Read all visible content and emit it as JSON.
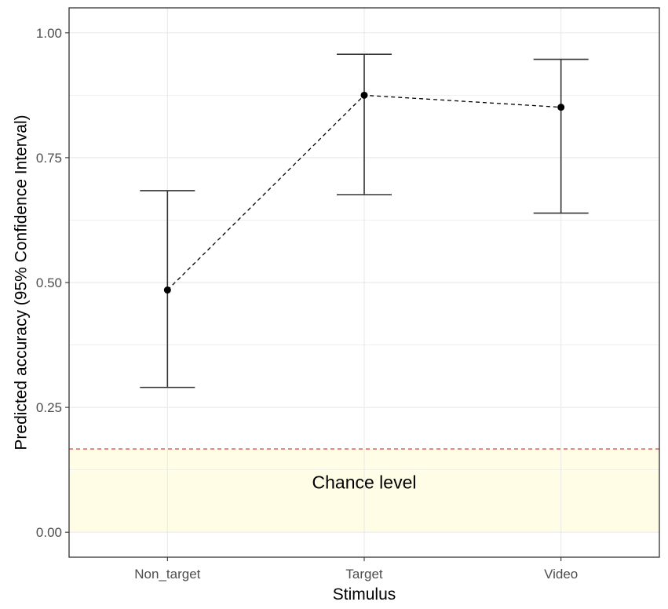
{
  "chart_data": {
    "type": "scatter",
    "title": "",
    "xlabel": "Stimulus",
    "ylabel": "Predicted accuracy (95% Confidence Interval)",
    "categories": [
      "Non_target",
      "Target",
      "Video"
    ],
    "series": [
      {
        "values": [
          0.485,
          0.875,
          0.851
        ],
        "ci_lower": [
          0.29,
          0.676,
          0.639
        ],
        "ci_upper": [
          0.684,
          0.957,
          0.947
        ],
        "connector": "dashed"
      }
    ],
    "ylim": [
      -0.05,
      1.05
    ],
    "yticks": [
      0.0,
      0.25,
      0.5,
      0.75,
      1.0
    ],
    "ytick_labels": [
      "0.00",
      "0.25",
      "0.50",
      "0.75",
      "1.00"
    ],
    "reference_line": {
      "y": 0.1667,
      "style": "dashed",
      "color": "#d9534f"
    },
    "shaded_band": {
      "ymin": 0.0,
      "ymax": 0.1667,
      "color": "#fffde6"
    },
    "annotation": {
      "text": "Chance level",
      "x": "Target",
      "y": 0.1
    },
    "grid": true,
    "colors": {
      "point": "#000000",
      "errorbar": "#333333",
      "grid": "#ebebeb",
      "panel_border": "#333333"
    }
  }
}
